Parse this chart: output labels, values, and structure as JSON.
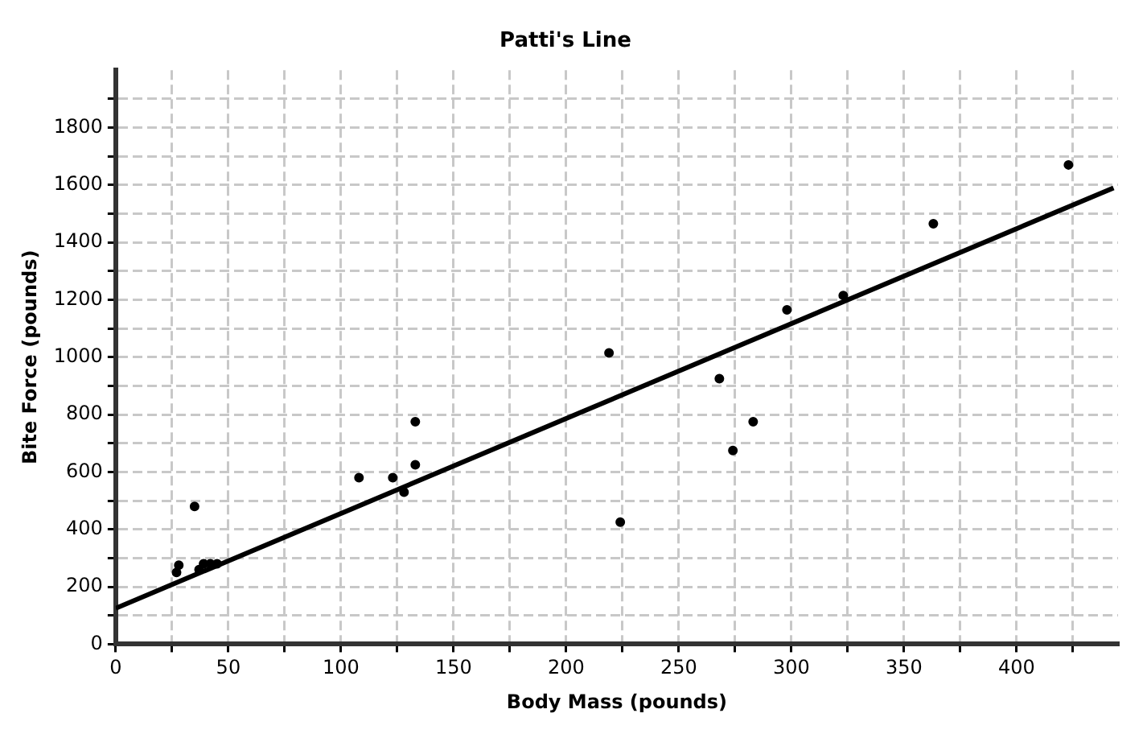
{
  "chart_data": {
    "type": "scatter",
    "title": "Patti's Line",
    "xlabel": "Body Mass (pounds)",
    "ylabel": "Bite Force (pounds)",
    "series": [
      {
        "type": "scatter",
        "color": "#000000",
        "x": [
          27,
          28,
          35,
          37,
          39,
          42,
          45,
          108,
          123,
          128,
          133,
          133,
          219,
          224,
          268,
          274,
          283,
          298,
          323,
          363,
          423
        ],
        "values": [
          250,
          275,
          480,
          260,
          280,
          280,
          280,
          580,
          580,
          530,
          625,
          775,
          1015,
          425,
          925,
          675,
          775,
          1165,
          1215,
          1465,
          1670
        ],
        "marker": "circle"
      },
      {
        "type": "line",
        "color": "#000000",
        "x": [
          0,
          443
        ],
        "values": [
          125,
          1590
        ],
        "marker": "none"
      }
    ],
    "xlim": [
      0,
      445
    ],
    "ylim": [
      0,
      2000
    ],
    "xticks": [
      0,
      {
        "value": 25,
        "label": null
      },
      50,
      {
        "value": 75,
        "label": null
      },
      100,
      {
        "value": 125,
        "label": null
      },
      150,
      {
        "value": 175,
        "label": null
      },
      200,
      {
        "value": 225,
        "label": null
      },
      250,
      {
        "value": 275,
        "label": null
      },
      300,
      {
        "value": 325,
        "label": null
      },
      350,
      {
        "value": 375,
        "label": null
      },
      400,
      {
        "value": 425,
        "label": null
      }
    ],
    "yticks": [
      0,
      {
        "value": 100,
        "label": null
      },
      200,
      {
        "value": 300,
        "label": null
      },
      400,
      {
        "value": 500,
        "label": null
      },
      600,
      {
        "value": 700,
        "label": null
      },
      800,
      {
        "value": 900,
        "label": null
      },
      1000,
      {
        "value": 1100,
        "label": null
      },
      1200,
      {
        "value": 1300,
        "label": null
      },
      1400,
      {
        "value": 1500,
        "label": null
      },
      1600,
      {
        "value": 1700,
        "label": null
      },
      1800,
      {
        "value": 1900,
        "label": null
      }
    ],
    "grid": true,
    "legend": false
  }
}
